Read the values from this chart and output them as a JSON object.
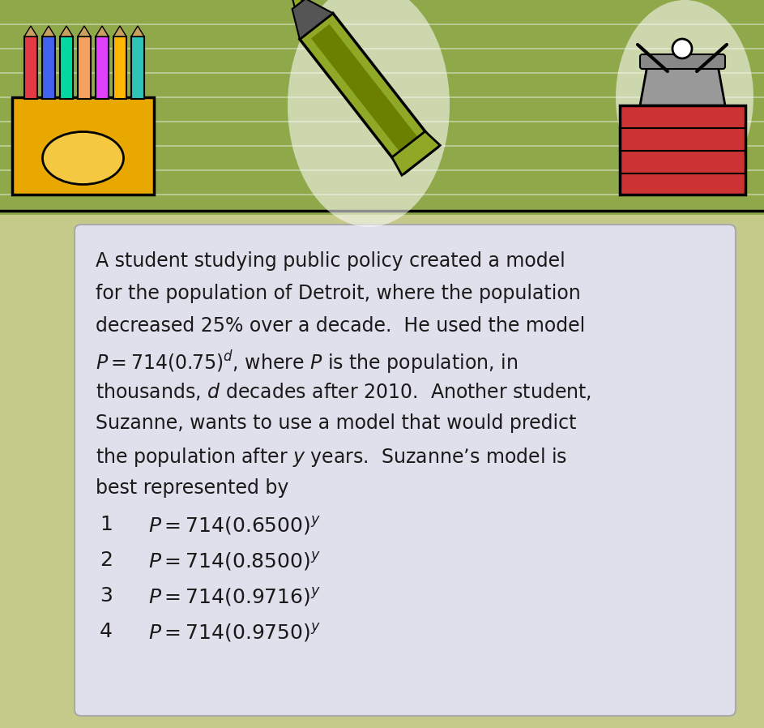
{
  "bg_color": "#c5c98a",
  "box_color": "#dfe0eb",
  "header_bg": "#8fa84a",
  "text_color": "#1a1a1a",
  "font_size_para": 17,
  "font_size_choice": 18,
  "paragraph_lines": [
    "A student studying public policy created a model",
    "for the population of Detroit, where the population",
    "decreased 25% over a decade.  He used the model",
    "$P = 714(0.75)^{d}$, where $P$ is the population, in",
    "thousands, $d$ decades after 2010.  Another student,",
    "Suzanne, wants to use a model that would predict",
    "the population after $y$ years.  Suzanne’s model is",
    "best represented by"
  ],
  "choices": [
    [
      "1",
      "$P = 714(0.6500)^{y}$"
    ],
    [
      "2",
      "$P = 714(0.8500)^{y}$"
    ],
    [
      "3",
      "$P = 714(0.9716)^{y}$"
    ],
    [
      "4",
      "$P = 714(0.9750)^{y}$"
    ]
  ],
  "crayon_colors": [
    "#e63946",
    "#4361ee",
    "#06d6a0",
    "#f4a261",
    "#e040fb",
    "#ffb703",
    "#2ec4b6"
  ],
  "crayon_box_color": "#e8a800",
  "marker_color": "#8fa825",
  "marker_dark": "#6b8000",
  "clip_color": "#cc3333",
  "line_color_header": "#ffffff"
}
